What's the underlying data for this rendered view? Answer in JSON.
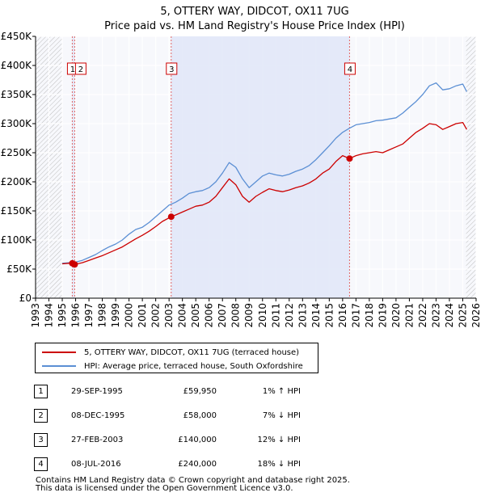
{
  "title_line1": "5, OTTERY WAY, DIDCOT, OX11 7UG",
  "title_line2": "Price paid vs. HM Land Registry's House Price Index (HPI)",
  "legend": [
    {
      "label": "5, OTTERY WAY, DIDCOT, OX11 7UG (terraced house)",
      "color": "#cc0000"
    },
    {
      "label": "HPI: Average price, terraced house, South Oxfordshire",
      "color": "#5b8fd4"
    }
  ],
  "sales": [
    {
      "num": "1",
      "date": "29-SEP-1995",
      "price": "£59,950",
      "hpi": "1% ↑ HPI"
    },
    {
      "num": "2",
      "date": "08-DEC-1995",
      "price": "£58,000",
      "hpi": "7% ↓ HPI"
    },
    {
      "num": "3",
      "date": "27-FEB-2003",
      "price": "£140,000",
      "hpi": "12% ↓ HPI"
    },
    {
      "num": "4",
      "date": "08-JUL-2016",
      "price": "£240,000",
      "hpi": "18% ↓ HPI"
    }
  ],
  "footer_line1": "Contains HM Land Registry data © Crown copyright and database right 2025.",
  "footer_line2": "This data is licensed under the Open Government Licence v3.0.",
  "chart_data": {
    "type": "line",
    "title": "5, OTTERY WAY, DIDCOT, OX11 7UG — Price paid vs. HM Land Registry's House Price Index (HPI)",
    "xlim": [
      1993,
      2026
    ],
    "ylim": [
      0,
      450000
    ],
    "yticks": [
      0,
      50000,
      100000,
      150000,
      200000,
      250000,
      300000,
      350000,
      400000,
      450000
    ],
    "ytick_labels": [
      "£0",
      "£50K",
      "£100K",
      "£150K",
      "£200K",
      "£250K",
      "£300K",
      "£350K",
      "£400K",
      "£450K"
    ],
    "xticks": [
      1993,
      1994,
      1995,
      1996,
      1997,
      1998,
      1999,
      2000,
      2001,
      2002,
      2003,
      2004,
      2005,
      2006,
      2007,
      2008,
      2009,
      2010,
      2011,
      2012,
      2013,
      2014,
      2015,
      2016,
      2017,
      2018,
      2019,
      2020,
      2021,
      2022,
      2023,
      2024,
      2025,
      2026
    ],
    "hatched_before": 1995.0,
    "hatched_after": 2025.25,
    "shaded_spans": [
      [
        1995.75,
        1995.93
      ],
      [
        2003.16,
        2016.52
      ]
    ],
    "sale_markers": [
      {
        "label": "1",
        "x": 1995.75,
        "y": 59950
      },
      {
        "label": "2",
        "x": 1995.93,
        "y": 58000
      },
      {
        "label": "3",
        "x": 2003.16,
        "y": 140000
      },
      {
        "label": "4",
        "x": 2016.52,
        "y": 240000
      }
    ],
    "series": [
      {
        "name": "HPI: Average price, terraced house, South Oxfordshire",
        "color": "#5b8fd4",
        "x": [
          1995.0,
          1995.5,
          1996.0,
          1996.5,
          1997.0,
          1997.5,
          1998.0,
          1998.5,
          1999.0,
          1999.5,
          2000.0,
          2000.5,
          2001.0,
          2001.5,
          2002.0,
          2002.5,
          2003.0,
          2003.5,
          2004.0,
          2004.5,
          2005.0,
          2005.5,
          2006.0,
          2006.5,
          2007.0,
          2007.5,
          2008.0,
          2008.5,
          2009.0,
          2009.5,
          2010.0,
          2010.5,
          2011.0,
          2011.5,
          2012.0,
          2012.5,
          2013.0,
          2013.5,
          2014.0,
          2014.5,
          2015.0,
          2015.5,
          2016.0,
          2016.5,
          2017.0,
          2017.5,
          2018.0,
          2018.5,
          2019.0,
          2019.5,
          2020.0,
          2020.5,
          2021.0,
          2021.5,
          2022.0,
          2022.5,
          2023.0,
          2023.5,
          2024.0,
          2024.5,
          2025.0,
          2025.3
        ],
        "values": [
          60000,
          61000,
          62000,
          65000,
          70000,
          75000,
          82000,
          88000,
          93000,
          100000,
          110000,
          118000,
          122000,
          130000,
          140000,
          150000,
          160000,
          165000,
          172000,
          180000,
          183000,
          185000,
          190000,
          200000,
          215000,
          233000,
          225000,
          205000,
          190000,
          200000,
          210000,
          215000,
          212000,
          210000,
          213000,
          218000,
          222000,
          228000,
          238000,
          250000,
          262000,
          275000,
          285000,
          292000,
          298000,
          300000,
          302000,
          305000,
          306000,
          308000,
          310000,
          318000,
          328000,
          338000,
          350000,
          365000,
          370000,
          358000,
          360000,
          365000,
          368000,
          355000
        ]
      },
      {
        "name": "5, OTTERY WAY, DIDCOT, OX11 7UG (terraced house)",
        "color": "#cc0000",
        "x": [
          1995.0,
          1995.5,
          1995.75,
          1995.93,
          1996.5,
          1997.0,
          1997.5,
          1998.0,
          1998.5,
          1999.0,
          1999.5,
          2000.0,
          2000.5,
          2001.0,
          2001.5,
          2002.0,
          2002.5,
          2003.16,
          2003.5,
          2004.0,
          2004.5,
          2005.0,
          2005.5,
          2006.0,
          2006.5,
          2007.0,
          2007.5,
          2008.0,
          2008.5,
          2009.0,
          2009.5,
          2010.0,
          2010.5,
          2011.0,
          2011.5,
          2012.0,
          2012.5,
          2013.0,
          2013.5,
          2014.0,
          2014.5,
          2015.0,
          2015.5,
          2016.0,
          2016.52,
          2017.0,
          2017.5,
          2018.0,
          2018.5,
          2019.0,
          2019.5,
          2020.0,
          2020.5,
          2021.0,
          2021.5,
          2022.0,
          2022.5,
          2023.0,
          2023.5,
          2024.0,
          2024.5,
          2025.0,
          2025.3
        ],
        "values": [
          59000,
          60000,
          59950,
          58000,
          61000,
          65000,
          69000,
          73000,
          78000,
          83000,
          88000,
          95000,
          102000,
          108000,
          115000,
          123000,
          132000,
          140000,
          143000,
          148000,
          153000,
          158000,
          160000,
          165000,
          175000,
          190000,
          205000,
          195000,
          175000,
          165000,
          175000,
          182000,
          188000,
          185000,
          183000,
          186000,
          190000,
          193000,
          198000,
          205000,
          215000,
          222000,
          235000,
          245000,
          240000,
          245000,
          248000,
          250000,
          252000,
          250000,
          255000,
          260000,
          265000,
          275000,
          285000,
          292000,
          300000,
          298000,
          290000,
          295000,
          300000,
          302000,
          290000
        ]
      }
    ]
  }
}
